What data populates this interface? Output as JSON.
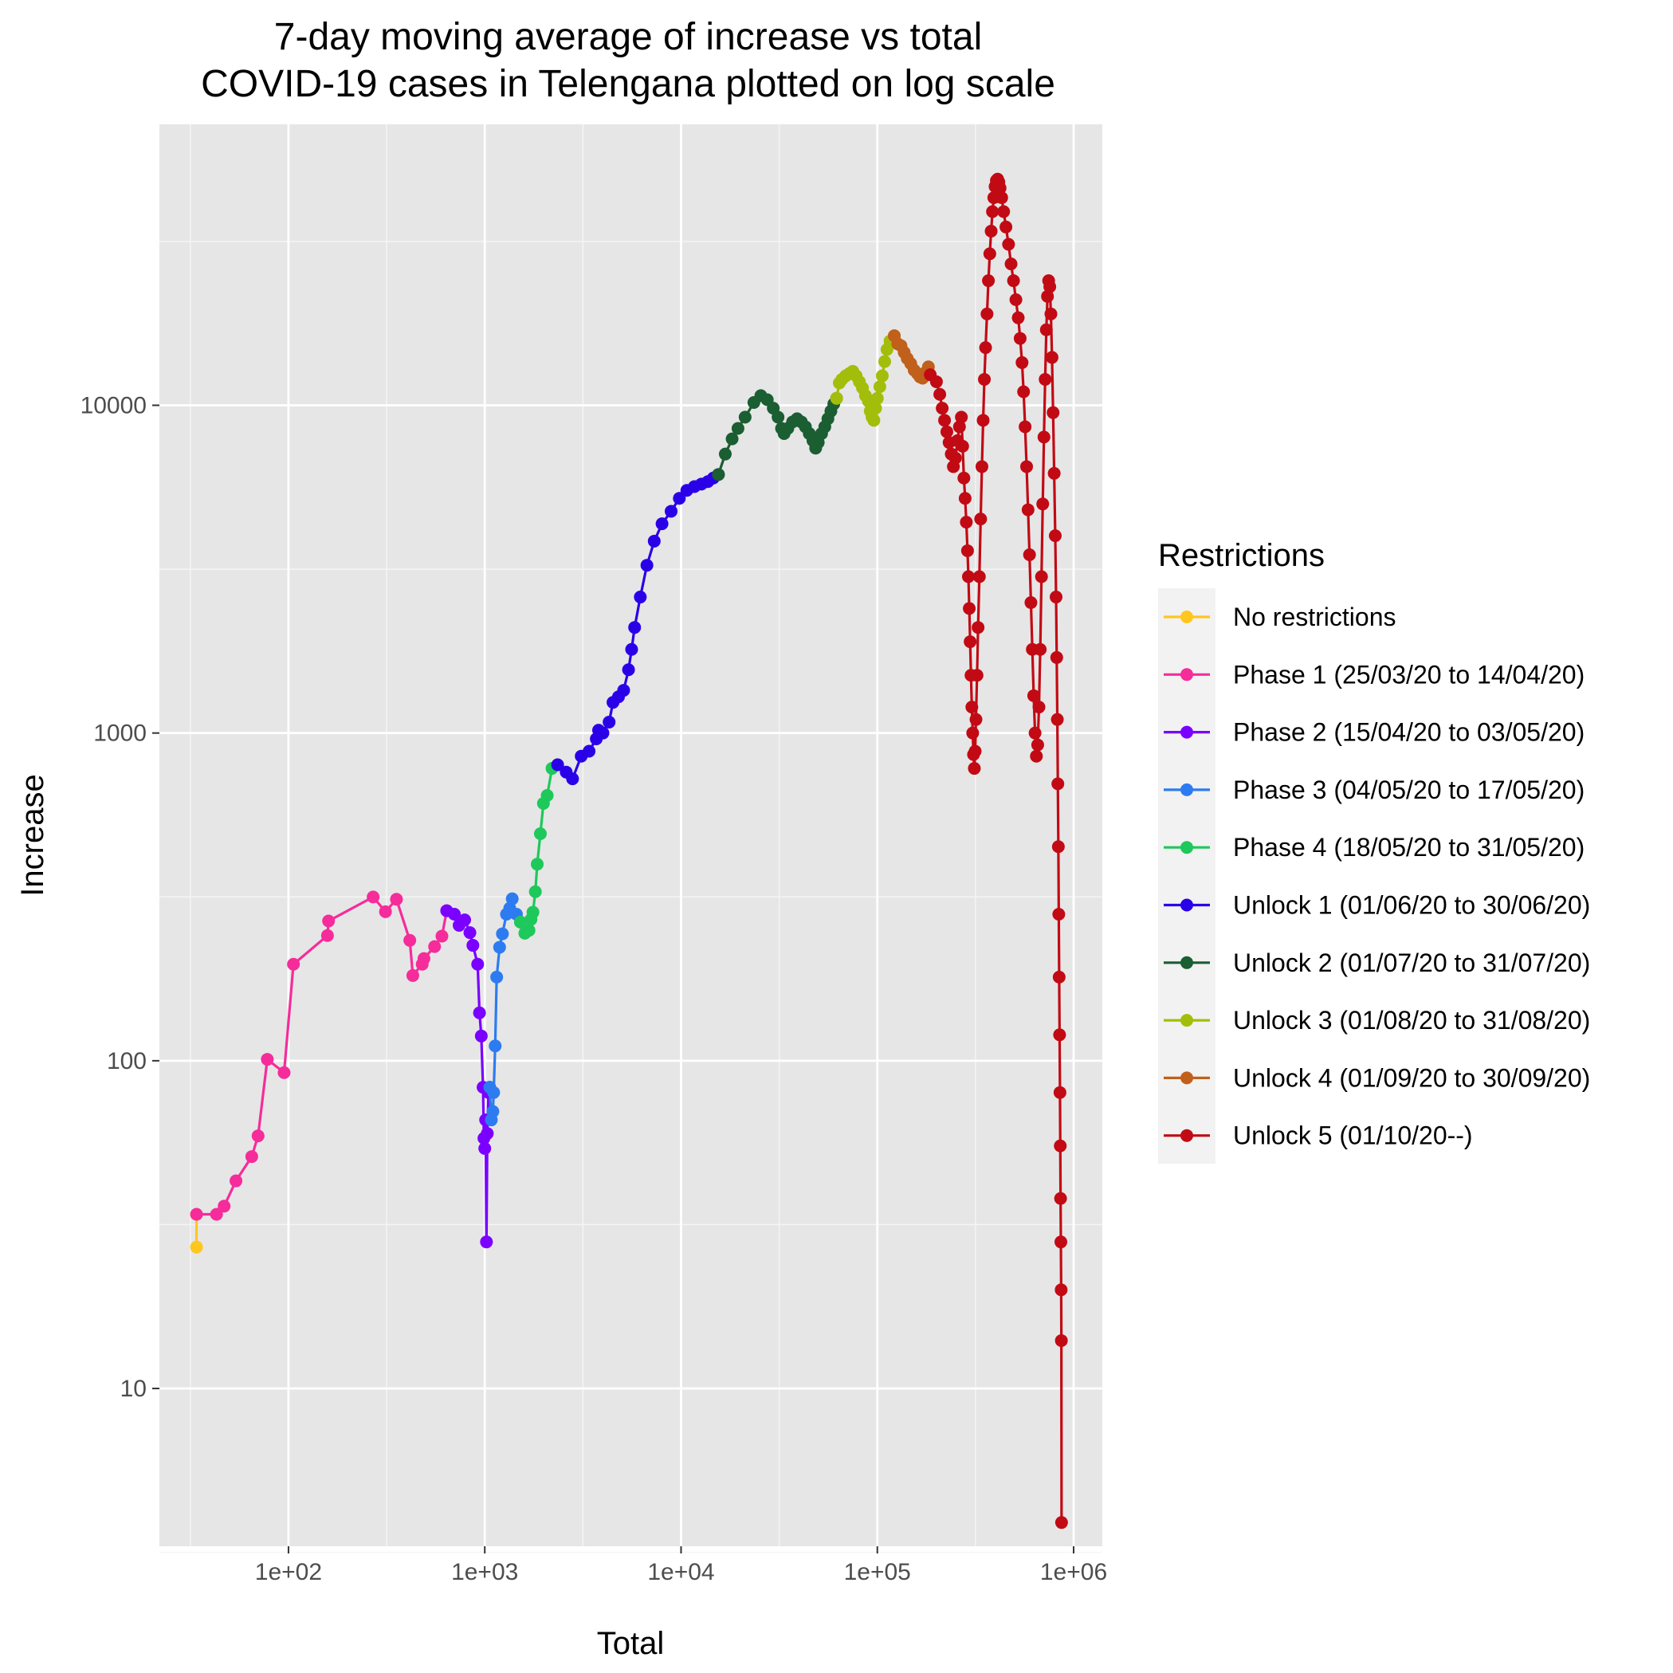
{
  "chart_data": {
    "type": "line",
    "title": "7-day moving average of increase vs total\nCOVID-19 cases in Telengana plotted on log scale",
    "xlabel": "Total",
    "ylabel": "Increase",
    "x_scale": "log10",
    "y_scale": "log10",
    "xlim": [
      22,
      1400000
    ],
    "ylim": [
      3.3,
      72000
    ],
    "x_ticks": [
      100,
      1000,
      10000,
      100000,
      1000000
    ],
    "x_tick_labels": [
      "1e+02",
      "1e+03",
      "1e+04",
      "1e+05",
      "1e+06"
    ],
    "y_ticks": [
      10,
      100,
      1000,
      10000
    ],
    "y_tick_labels": [
      "10",
      "100",
      "1000",
      "10000"
    ],
    "grid": true,
    "legend": {
      "title": "Restrictions",
      "placement": "right"
    },
    "series": [
      {
        "name": "No restrictions",
        "color": "#FFC61E",
        "points": [
          [
            34,
            27
          ],
          [
            34,
            34
          ]
        ]
      },
      {
        "name": "Phase 1 (25/03/20 to 14/04/20)",
        "color": "#F52C9A",
        "points": [
          [
            34,
            34
          ],
          [
            43,
            34
          ],
          [
            47,
            36
          ],
          [
            54,
            43
          ],
          [
            65,
            51
          ],
          [
            70,
            59
          ],
          [
            78,
            101
          ],
          [
            95,
            92
          ],
          [
            106,
            197
          ],
          [
            158,
            241
          ],
          [
            160,
            267
          ],
          [
            270,
            316
          ],
          [
            312,
            285
          ],
          [
            355,
            311
          ],
          [
            415,
            233
          ],
          [
            430,
            182
          ],
          [
            480,
            197
          ],
          [
            490,
            205
          ],
          [
            555,
            223
          ],
          [
            605,
            240
          ],
          [
            640,
            287
          ]
        ]
      },
      {
        "name": "Phase 2 (15/04/20 to 03/05/20)",
        "color": "#7A00FF",
        "points": [
          [
            640,
            287
          ],
          [
            700,
            280
          ],
          [
            740,
            259
          ],
          [
            790,
            269
          ],
          [
            840,
            246
          ],
          [
            870,
            225
          ],
          [
            920,
            197
          ],
          [
            940,
            140
          ],
          [
            960,
            119
          ],
          [
            980,
            83
          ],
          [
            990,
            58
          ],
          [
            1000,
            54
          ],
          [
            1010,
            66
          ],
          [
            1020,
            28
          ],
          [
            1030,
            60
          ],
          [
            1045,
            80
          ],
          [
            1060,
            83
          ]
        ]
      },
      {
        "name": "Phase 3 (04/05/20 to 17/05/20)",
        "color": "#2D7BF0",
        "points": [
          [
            1060,
            83
          ],
          [
            1080,
            66
          ],
          [
            1100,
            70
          ],
          [
            1110,
            80
          ],
          [
            1130,
            111
          ],
          [
            1150,
            180
          ],
          [
            1190,
            222
          ],
          [
            1230,
            244
          ],
          [
            1290,
            280
          ],
          [
            1340,
            292
          ],
          [
            1380,
            312
          ],
          [
            1450,
            280
          ],
          [
            1520,
            265
          ]
        ]
      },
      {
        "name": "Phase 4 (18/05/20 to 31/05/20)",
        "color": "#1EC85A",
        "points": [
          [
            1520,
            265
          ],
          [
            1600,
            245
          ],
          [
            1680,
            250
          ],
          [
            1720,
            270
          ],
          [
            1760,
            284
          ],
          [
            1810,
            328
          ],
          [
            1850,
            398
          ],
          [
            1920,
            493
          ],
          [
            1990,
            610
          ],
          [
            2080,
            645
          ],
          [
            2200,
            780
          ],
          [
            2350,
            800
          ]
        ]
      },
      {
        "name": "Unlock 1 (01/06/20 to 30/06/20)",
        "color": "#2A00E8",
        "points": [
          [
            2350,
            800
          ],
          [
            2600,
            760
          ],
          [
            2800,
            725
          ],
          [
            3100,
            850
          ],
          [
            3400,
            880
          ],
          [
            3700,
            960
          ],
          [
            3800,
            1020
          ],
          [
            4000,
            1000
          ],
          [
            4300,
            1080
          ],
          [
            4500,
            1240
          ],
          [
            4800,
            1290
          ],
          [
            5100,
            1350
          ],
          [
            5400,
            1560
          ],
          [
            5600,
            1800
          ],
          [
            5800,
            2100
          ],
          [
            6200,
            2600
          ],
          [
            6700,
            3250
          ],
          [
            7300,
            3850
          ],
          [
            8000,
            4350
          ],
          [
            8900,
            4750
          ],
          [
            9800,
            5200
          ],
          [
            10700,
            5500
          ],
          [
            11700,
            5650
          ],
          [
            12700,
            5750
          ],
          [
            13700,
            5850
          ],
          [
            14600,
            6000
          ],
          [
            15500,
            6150
          ]
        ]
      },
      {
        "name": "Unlock 2 (01/07/20 to 31/07/20)",
        "color": "#1A5E32",
        "points": [
          [
            15500,
            6150
          ],
          [
            16800,
            7100
          ],
          [
            18200,
            7900
          ],
          [
            19500,
            8500
          ],
          [
            21200,
            9200
          ],
          [
            23500,
            10200
          ],
          [
            25500,
            10700
          ],
          [
            27500,
            10400
          ],
          [
            29500,
            9800
          ],
          [
            31200,
            9200
          ],
          [
            32500,
            8500
          ],
          [
            33500,
            8200
          ],
          [
            35000,
            8500
          ],
          [
            37000,
            8900
          ],
          [
            39000,
            9100
          ],
          [
            41000,
            8900
          ],
          [
            43000,
            8600
          ],
          [
            45000,
            8200
          ],
          [
            47000,
            7800
          ],
          [
            48500,
            7400
          ],
          [
            50000,
            7700
          ],
          [
            52000,
            8200
          ],
          [
            54000,
            8600
          ],
          [
            56000,
            9100
          ],
          [
            58000,
            9600
          ],
          [
            60000,
            10100
          ],
          [
            62000,
            10500
          ]
        ]
      },
      {
        "name": "Unlock 3 (01/08/20 to 31/08/20)",
        "color": "#A3BE0A",
        "points": [
          [
            62000,
            10500
          ],
          [
            64000,
            11700
          ],
          [
            66000,
            12000
          ],
          [
            69000,
            12300
          ],
          [
            72000,
            12500
          ],
          [
            75000,
            12700
          ],
          [
            78000,
            12300
          ],
          [
            81000,
            11800
          ],
          [
            84000,
            11300
          ],
          [
            87000,
            10700
          ],
          [
            90000,
            10300
          ],
          [
            92000,
            9600
          ],
          [
            94000,
            9200
          ],
          [
            96000,
            9000
          ],
          [
            98000,
            9800
          ],
          [
            100000,
            10500
          ],
          [
            103000,
            11400
          ],
          [
            106000,
            12300
          ],
          [
            109000,
            13600
          ],
          [
            112000,
            14800
          ],
          [
            116000,
            15700
          ],
          [
            122000,
            16300
          ]
        ]
      },
      {
        "name": "Unlock 4 (01/09/20 to 30/09/20)",
        "color": "#C0601B",
        "points": [
          [
            122000,
            16300
          ],
          [
            127000,
            15400
          ],
          [
            132000,
            15200
          ],
          [
            137000,
            14500
          ],
          [
            142000,
            13900
          ],
          [
            148000,
            13400
          ],
          [
            154000,
            12800
          ],
          [
            160000,
            12500
          ],
          [
            165000,
            12200
          ],
          [
            170000,
            12100
          ],
          [
            176000,
            12600
          ],
          [
            182000,
            13100
          ],
          [
            186000,
            12400
          ]
        ]
      },
      {
        "name": "Unlock 5 (01/10/20--)",
        "color": "#C20A14",
        "points": [
          [
            186000,
            12400
          ],
          [
            200000,
            11800
          ],
          [
            208000,
            10800
          ],
          [
            214000,
            9800
          ],
          [
            220000,
            9000
          ],
          [
            226000,
            8300
          ],
          [
            232000,
            7700
          ],
          [
            238000,
            7100
          ],
          [
            244000,
            6500
          ],
          [
            250000,
            6900
          ],
          [
            256000,
            7800
          ],
          [
            262000,
            8600
          ],
          [
            268000,
            9200
          ],
          [
            272000,
            7500
          ],
          [
            276000,
            6000
          ],
          [
            280000,
            5200
          ],
          [
            284000,
            4400
          ],
          [
            288000,
            3600
          ],
          [
            291000,
            3000
          ],
          [
            294000,
            2400
          ],
          [
            297000,
            1900
          ],
          [
            300000,
            1500
          ],
          [
            303000,
            1200
          ],
          [
            306000,
            1000
          ],
          [
            309000,
            860
          ],
          [
            312000,
            780
          ],
          [
            315000,
            880
          ],
          [
            318000,
            1100
          ],
          [
            322000,
            1500
          ],
          [
            326000,
            2100
          ],
          [
            331000,
            3000
          ],
          [
            336000,
            4500
          ],
          [
            341000,
            6500
          ],
          [
            346000,
            9000
          ],
          [
            351000,
            12000
          ],
          [
            356000,
            15000
          ],
          [
            362000,
            19000
          ],
          [
            368000,
            24000
          ],
          [
            374000,
            29000
          ],
          [
            380000,
            34000
          ],
          [
            386000,
            39000
          ],
          [
            392000,
            43000
          ],
          [
            398000,
            46500
          ],
          [
            404000,
            48500
          ],
          [
            410000,
            49000
          ],
          [
            416000,
            48000
          ],
          [
            422000,
            46000
          ],
          [
            430000,
            43000
          ],
          [
            440000,
            39000
          ],
          [
            452000,
            35000
          ],
          [
            466000,
            31000
          ],
          [
            480000,
            27000
          ],
          [
            494000,
            24000
          ],
          [
            508000,
            21000
          ],
          [
            522000,
            18500
          ],
          [
            534000,
            16000
          ],
          [
            546000,
            13500
          ],
          [
            556000,
            11000
          ],
          [
            566000,
            8600
          ],
          [
            576000,
            6500
          ],
          [
            586000,
            4800
          ],
          [
            596000,
            3500
          ],
          [
            606000,
            2500
          ],
          [
            616000,
            1800
          ],
          [
            626000,
            1300
          ],
          [
            636000,
            1000
          ],
          [
            646000,
            850
          ],
          [
            656000,
            920
          ],
          [
            666000,
            1200
          ],
          [
            676000,
            1800
          ],
          [
            686000,
            3000
          ],
          [
            696000,
            5000
          ],
          [
            706000,
            8000
          ],
          [
            716000,
            12000
          ],
          [
            726000,
            17000
          ],
          [
            736000,
            21500
          ],
          [
            746000,
            24000
          ],
          [
            756000,
            23000
          ],
          [
            766000,
            19000
          ],
          [
            776000,
            14000
          ],
          [
            786000,
            9500
          ],
          [
            796000,
            6200
          ],
          [
            806000,
            4000
          ],
          [
            814000,
            2600
          ],
          [
            820000,
            1700
          ],
          [
            826000,
            1100
          ],
          [
            831000,
            700
          ],
          [
            836000,
            450
          ],
          [
            840000,
            280
          ],
          [
            844000,
            180
          ],
          [
            848000,
            120
          ],
          [
            852000,
            80
          ],
          [
            855000,
            55
          ],
          [
            858000,
            38
          ],
          [
            861000,
            28
          ],
          [
            864000,
            20
          ],
          [
            866000,
            14
          ],
          [
            868000,
            3.9
          ]
        ]
      }
    ]
  }
}
